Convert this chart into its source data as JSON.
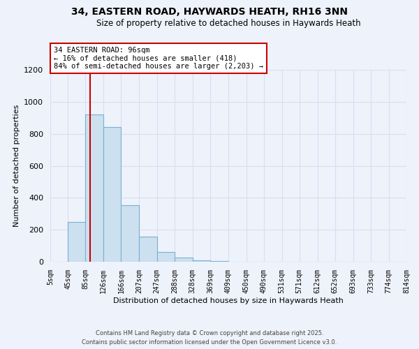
{
  "title": "34, EASTERN ROAD, HAYWARDS HEATH, RH16 3NN",
  "subtitle": "Size of property relative to detached houses in Haywards Heath",
  "xlabel": "Distribution of detached houses by size in Haywards Heath",
  "ylabel": "Number of detached properties",
  "bin_edges": [
    5,
    45,
    85,
    126,
    166,
    207,
    247,
    288,
    328,
    369,
    409,
    450,
    490,
    531,
    571,
    612,
    652,
    693,
    733,
    774,
    814
  ],
  "bin_labels": [
    "5sqm",
    "45sqm",
    "85sqm",
    "126sqm",
    "166sqm",
    "207sqm",
    "247sqm",
    "288sqm",
    "328sqm",
    "369sqm",
    "409sqm",
    "450sqm",
    "490sqm",
    "531sqm",
    "571sqm",
    "612sqm",
    "652sqm",
    "693sqm",
    "733sqm",
    "774sqm",
    "814sqm"
  ],
  "counts": [
    0,
    248,
    920,
    843,
    352,
    158,
    62,
    28,
    10,
    3,
    1,
    0,
    0,
    0,
    0,
    0,
    0,
    0,
    0,
    0
  ],
  "bar_color": "#cce0f0",
  "bar_edge_color": "#7ab0d0",
  "vline_x": 96,
  "vline_color": "#cc0000",
  "annotation_title": "34 EASTERN ROAD: 96sqm",
  "annotation_line1": "← 16% of detached houses are smaller (418)",
  "annotation_line2": "84% of semi-detached houses are larger (2,203) →",
  "annotation_box_color": "white",
  "annotation_box_edge": "#cc0000",
  "ylim": [
    0,
    1200
  ],
  "yticks": [
    0,
    200,
    400,
    600,
    800,
    1000,
    1200
  ],
  "footer1": "Contains HM Land Registry data © Crown copyright and database right 2025.",
  "footer2": "Contains public sector information licensed under the Open Government Licence v3.0.",
  "bg_color": "#eef2fb",
  "grid_color": "#d8dff0"
}
